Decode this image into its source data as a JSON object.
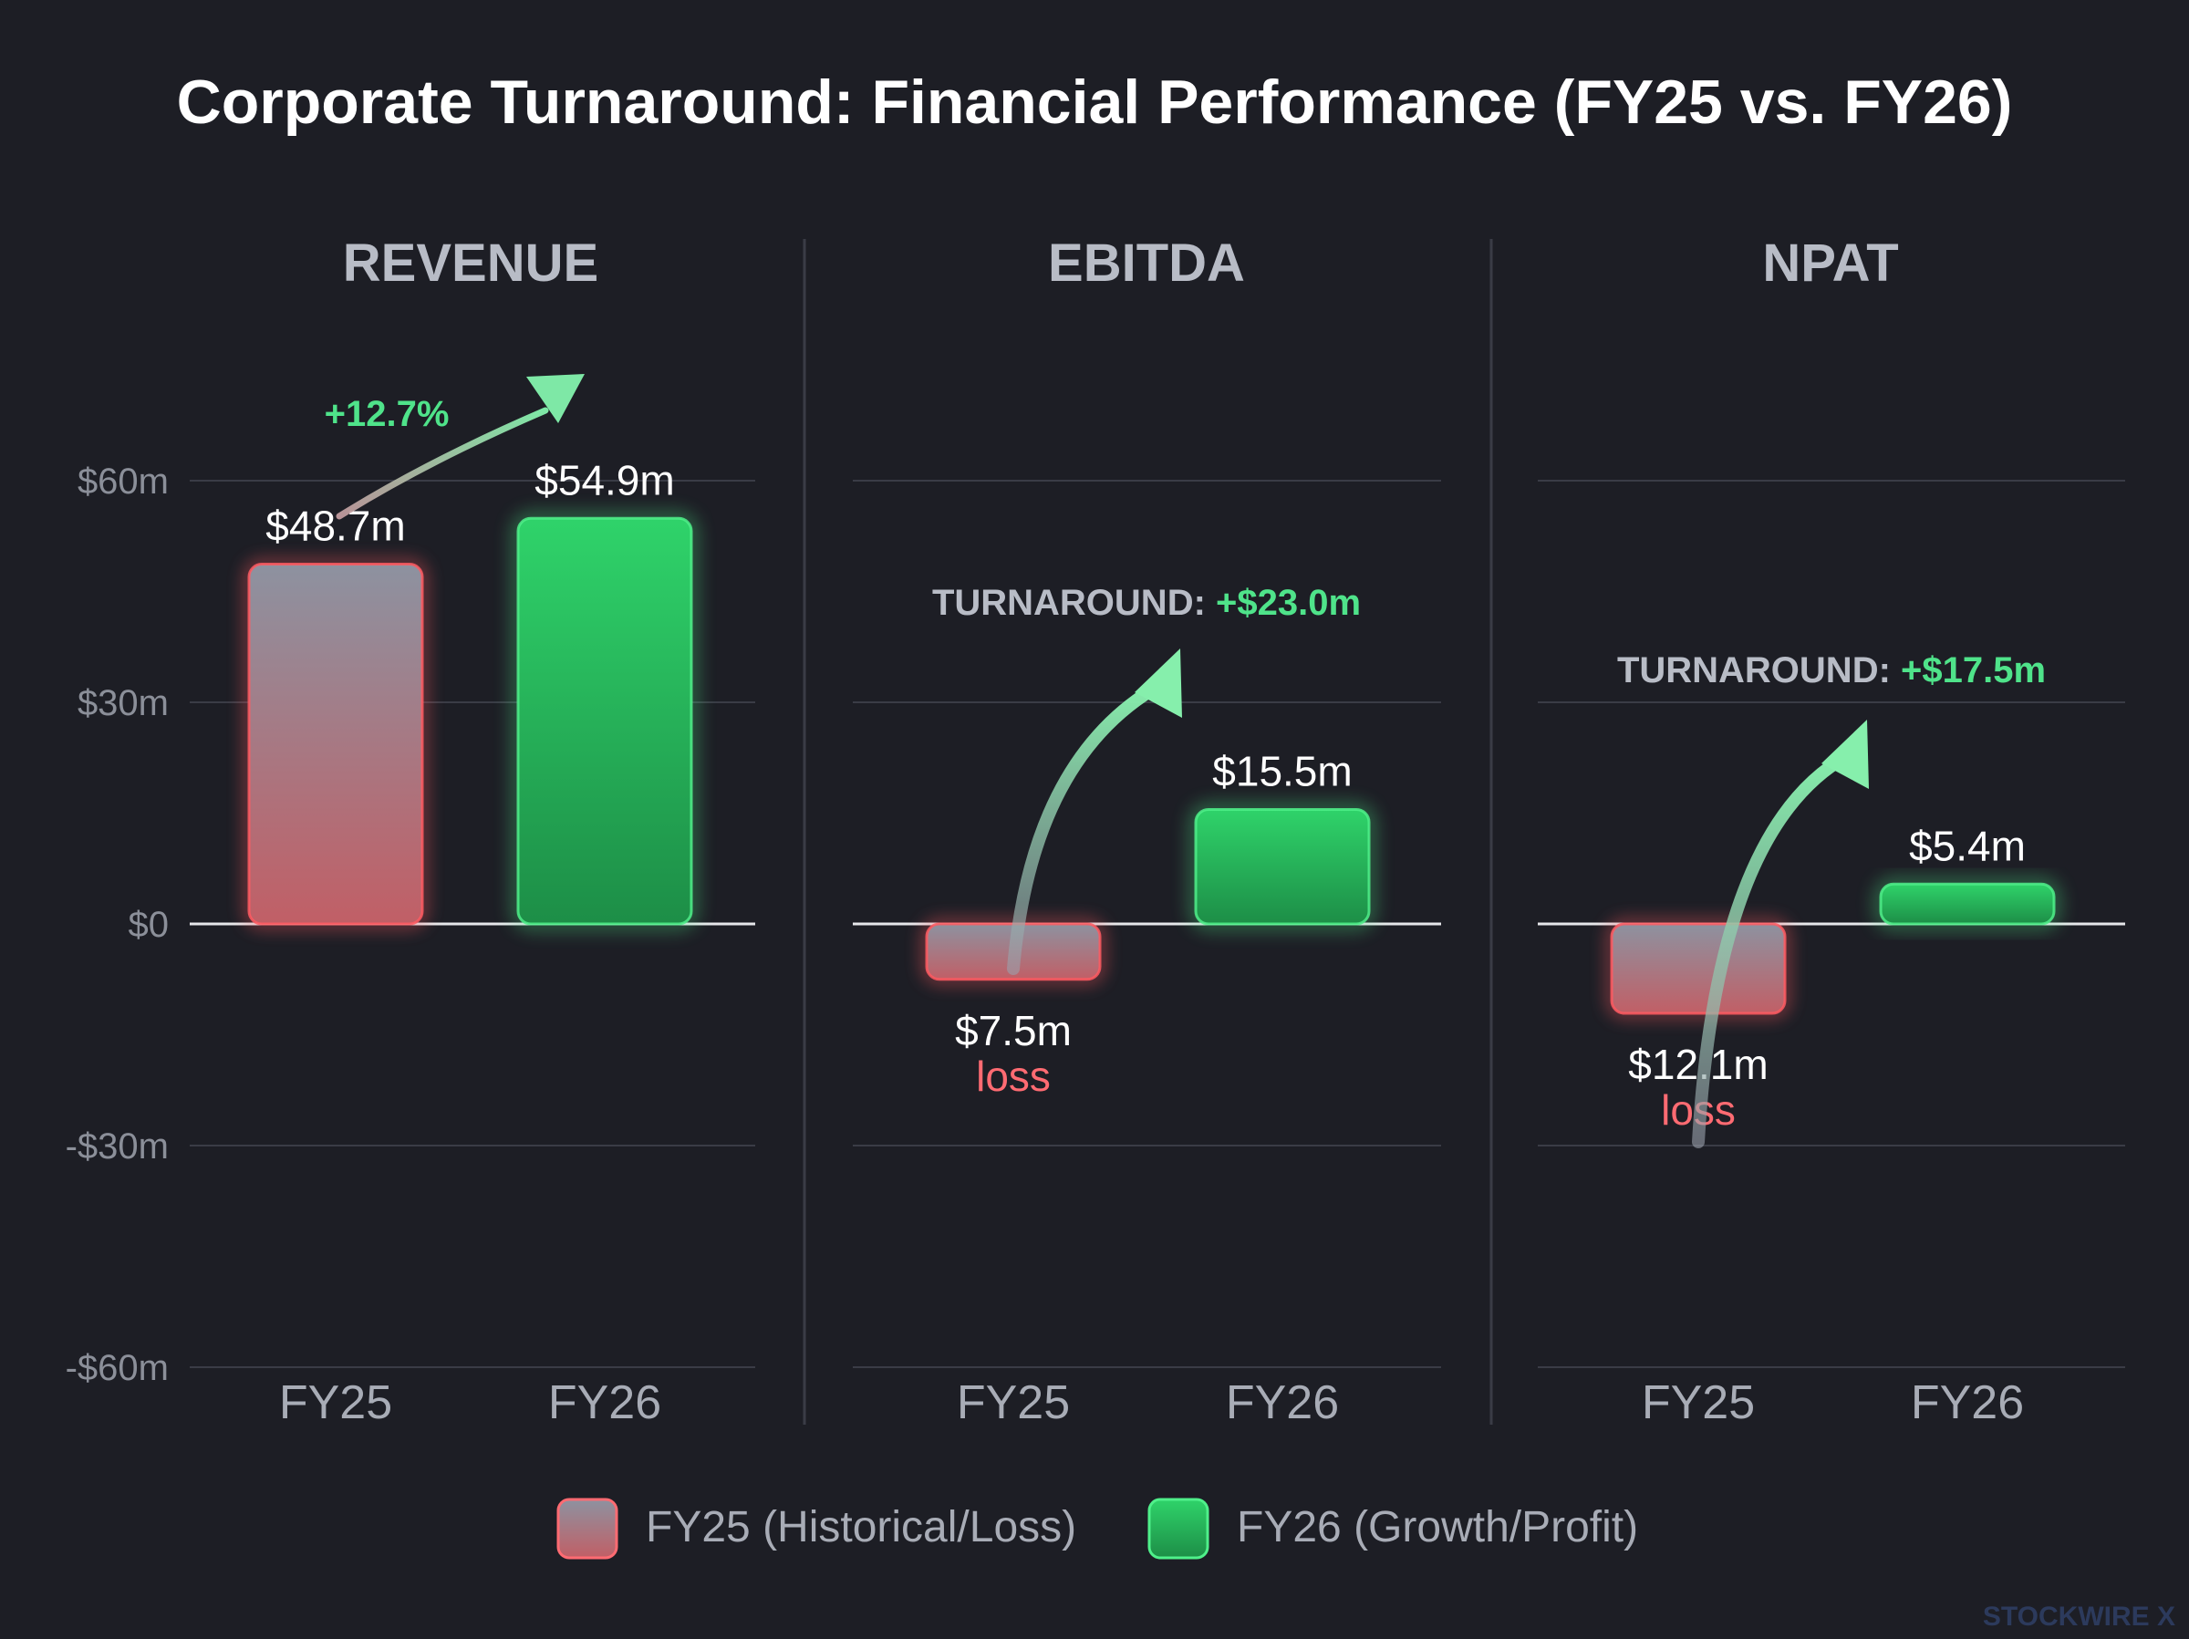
{
  "title": "Corporate Turnaround: Financial Performance (FY25 vs. FY26)",
  "watermark": "STOCKWIRE X",
  "colors": {
    "background": "#1d1e25",
    "fy25_top": "#8d92a0",
    "fy25_bottom": "#c15f66",
    "fy25_glow": "#ff5a61",
    "fy26_top": "#2fd36a",
    "fy26_bottom": "#1d8e47",
    "fy26_stroke": "#4ff08a",
    "accent_green": "#4fe38a",
    "loss_red": "#ff6b72",
    "muted_text": "#a8acb6",
    "grid": "#3a3c46"
  },
  "chart_data": {
    "type": "bar",
    "title": "Corporate Turnaround: Financial Performance (FY25 vs. FY26)",
    "categories": [
      "FY25",
      "FY26"
    ],
    "ylim": [
      -60,
      60
    ],
    "y_ticks": [
      {
        "value": 60,
        "label": "$60m"
      },
      {
        "value": 30,
        "label": "$30m"
      },
      {
        "value": 0,
        "label": "$0"
      },
      {
        "value": -30,
        "label": "-$30m"
      },
      {
        "value": -60,
        "label": "-$60m"
      }
    ],
    "grid": true,
    "legend_position": "bottom",
    "legend": [
      {
        "key": "fy25",
        "label": "FY25 (Historical/Loss)"
      },
      {
        "key": "fy26",
        "label": "FY26 (Growth/Profit)"
      }
    ],
    "panels": [
      {
        "name": "REVENUE",
        "values": [
          48.7,
          54.9
        ],
        "value_labels": [
          "$48.7m",
          "$54.9m"
        ],
        "sub_labels": [
          "",
          ""
        ],
        "annotation_prefix": "",
        "annotation_value": "+12.7%"
      },
      {
        "name": "EBITDA",
        "values": [
          -7.5,
          15.5
        ],
        "value_labels": [
          "$7.5m",
          "$15.5m"
        ],
        "sub_labels": [
          "loss",
          ""
        ],
        "annotation_prefix": "TURNAROUND: ",
        "annotation_value": "+$23.0m"
      },
      {
        "name": "NPAT",
        "values": [
          -12.1,
          5.4
        ],
        "value_labels": [
          "$12.1m",
          "$5.4m"
        ],
        "sub_labels": [
          "loss",
          ""
        ],
        "annotation_prefix": "TURNAROUND: ",
        "annotation_value": "+$17.5m"
      }
    ]
  }
}
